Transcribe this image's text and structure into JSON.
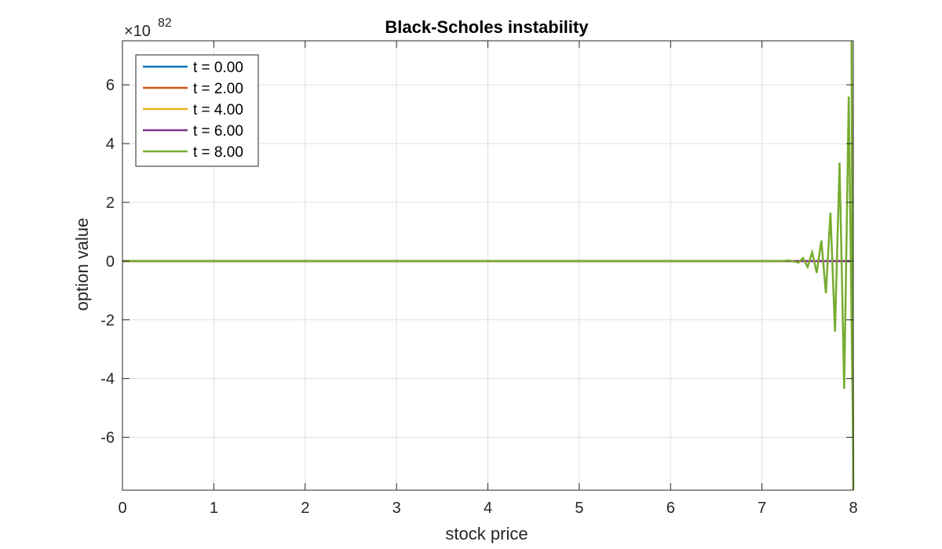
{
  "chart_data": {
    "type": "line",
    "title": "Black-Scholes instability",
    "xlabel": "stock price",
    "ylabel": "option value",
    "xlim": [
      0,
      8
    ],
    "ylim": [
      -7.8,
      7.5
    ],
    "y_exponent_label": "×10",
    "y_exponent": "82",
    "grid": true,
    "legend_position": "top-left",
    "x_ticks": [
      "0",
      "1",
      "2",
      "3",
      "4",
      "5",
      "6",
      "7",
      "8"
    ],
    "y_ticks": [
      "-6",
      "-4",
      "-2",
      "0",
      "2",
      "4",
      "6"
    ],
    "series": [
      {
        "name": "t = 0.00",
        "color": "#0072BD",
        "x": [
          0,
          8
        ],
        "y": [
          0,
          0
        ]
      },
      {
        "name": "t = 2.00",
        "color": "#D95319",
        "x": [
          0,
          8
        ],
        "y": [
          0,
          0
        ]
      },
      {
        "name": "t = 4.00",
        "color": "#EDB120",
        "x": [
          0,
          8
        ],
        "y": [
          0,
          0
        ]
      },
      {
        "name": "t = 6.00",
        "color": "#7E2F8E",
        "x": [
          0,
          8
        ],
        "y": [
          0,
          0
        ]
      },
      {
        "name": "t = 8.00",
        "color": "#77AC30",
        "x": [
          0,
          7.2,
          7.3,
          7.4,
          7.45,
          7.5,
          7.55,
          7.6,
          7.65,
          7.7,
          7.75,
          7.8,
          7.85,
          7.9,
          7.95,
          8.0
        ],
        "y": [
          0,
          0,
          0.02,
          -0.05,
          0.1,
          -0.2,
          0.3,
          -0.4,
          0.7,
          -1.1,
          1.65,
          -2.4,
          3.35,
          -4.35,
          5.6,
          -6.7
        ]
      }
    ],
    "tail_spikes": {
      "x": [
        7.98,
        8.0
      ],
      "y": [
        7.5,
        -7.8
      ],
      "color": "#77AC30"
    }
  }
}
